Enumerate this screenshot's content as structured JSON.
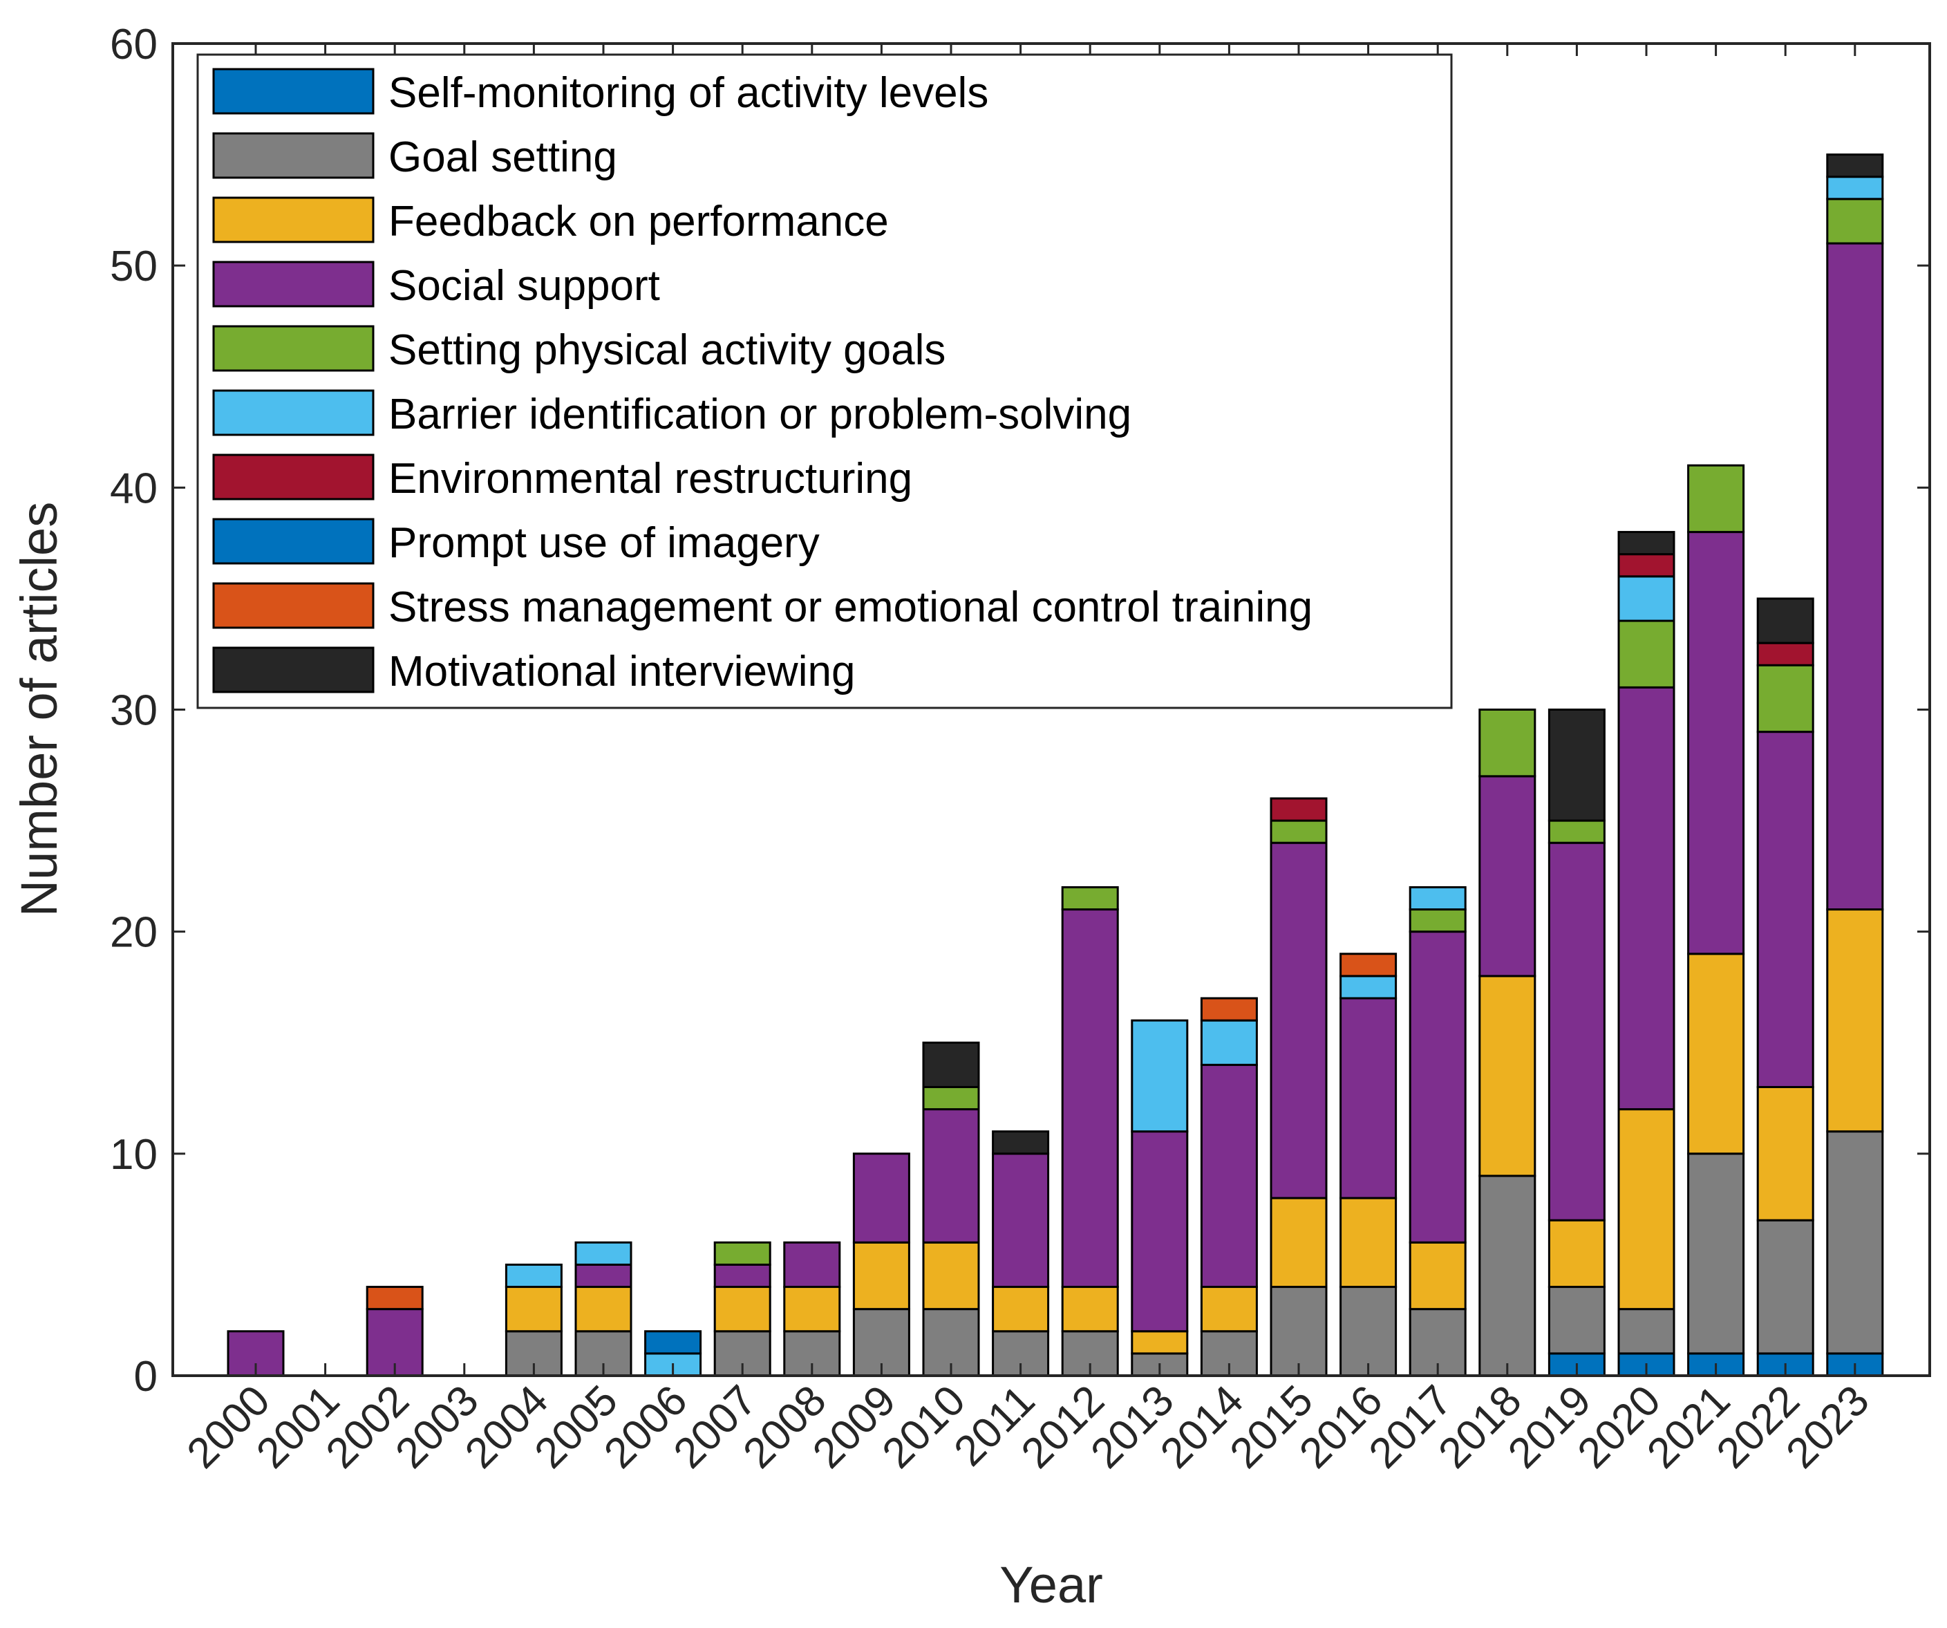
{
  "chart_data": {
    "type": "bar",
    "stacked": true,
    "title": "",
    "xlabel": "Year",
    "ylabel": "Number of articles",
    "ylim": [
      0,
      60
    ],
    "yticks": [
      0,
      10,
      20,
      30,
      40,
      50,
      60
    ],
    "grid": false,
    "legend_position": "top-left",
    "categories": [
      "2000",
      "2001",
      "2002",
      "2003",
      "2004",
      "2005",
      "2006",
      "2007",
      "2008",
      "2009",
      "2010",
      "2011",
      "2012",
      "2013",
      "2014",
      "2015",
      "2016",
      "2017",
      "2018",
      "2019",
      "2020",
      "2021",
      "2022",
      "2023"
    ],
    "series": [
      {
        "name": "Self-monitoring of activity levels",
        "color": "#0072BD",
        "values": [
          0,
          0,
          0,
          0,
          0,
          0,
          0,
          0,
          0,
          0,
          0,
          0,
          0,
          0,
          0,
          0,
          0,
          0,
          0,
          1,
          1,
          1,
          1,
          1
        ]
      },
      {
        "name": "Goal setting",
        "color": "#7F7F7F",
        "values": [
          0,
          0,
          0,
          0,
          2,
          2,
          0,
          2,
          2,
          3,
          3,
          2,
          2,
          1,
          2,
          4,
          4,
          3,
          9,
          3,
          2,
          9,
          6,
          10
        ]
      },
      {
        "name": "Feedback on performance",
        "color": "#EDB120",
        "values": [
          0,
          0,
          0,
          0,
          2,
          2,
          0,
          2,
          2,
          3,
          3,
          2,
          2,
          1,
          2,
          4,
          4,
          3,
          9,
          3,
          9,
          9,
          6,
          10
        ]
      },
      {
        "name": "Social support",
        "color": "#7E2F8E",
        "values": [
          2,
          0,
          3,
          0,
          0,
          1,
          0,
          1,
          2,
          4,
          6,
          6,
          17,
          9,
          10,
          16,
          9,
          14,
          9,
          17,
          19,
          19,
          16,
          30
        ]
      },
      {
        "name": "Setting physical activity goals",
        "color": "#77AC30",
        "values": [
          0,
          0,
          0,
          0,
          0,
          0,
          0,
          1,
          0,
          0,
          1,
          0,
          1,
          0,
          0,
          1,
          0,
          1,
          3,
          1,
          3,
          3,
          3,
          2
        ]
      },
      {
        "name": "Barrier identification or problem-solving",
        "color": "#4DBEEE",
        "values": [
          0,
          0,
          0,
          0,
          1,
          1,
          1,
          0,
          0,
          0,
          0,
          0,
          0,
          5,
          2,
          0,
          1,
          1,
          0,
          0,
          2,
          0,
          0,
          1
        ]
      },
      {
        "name": "Environmental restructuring",
        "color": "#A2142F",
        "values": [
          0,
          0,
          0,
          0,
          0,
          0,
          0,
          0,
          0,
          0,
          0,
          0,
          0,
          0,
          0,
          1,
          0,
          0,
          0,
          0,
          1,
          0,
          1,
          0
        ]
      },
      {
        "name": "Prompt use of imagery",
        "color": "#0072BD",
        "values": [
          0,
          0,
          0,
          0,
          0,
          0,
          1,
          0,
          0,
          0,
          0,
          0,
          0,
          0,
          0,
          0,
          0,
          0,
          0,
          0,
          0,
          0,
          0,
          0
        ]
      },
      {
        "name": "Stress management or emotional control training",
        "color": "#D95319",
        "values": [
          0,
          0,
          1,
          0,
          0,
          0,
          0,
          0,
          0,
          0,
          0,
          0,
          0,
          0,
          1,
          0,
          1,
          0,
          0,
          0,
          0,
          0,
          0,
          0
        ]
      },
      {
        "name": "Motivational interviewing",
        "color": "#262626",
        "values": [
          0,
          0,
          0,
          0,
          0,
          0,
          0,
          0,
          0,
          0,
          2,
          1,
          0,
          0,
          0,
          0,
          0,
          0,
          0,
          5,
          1,
          0,
          2,
          1
        ]
      }
    ]
  }
}
